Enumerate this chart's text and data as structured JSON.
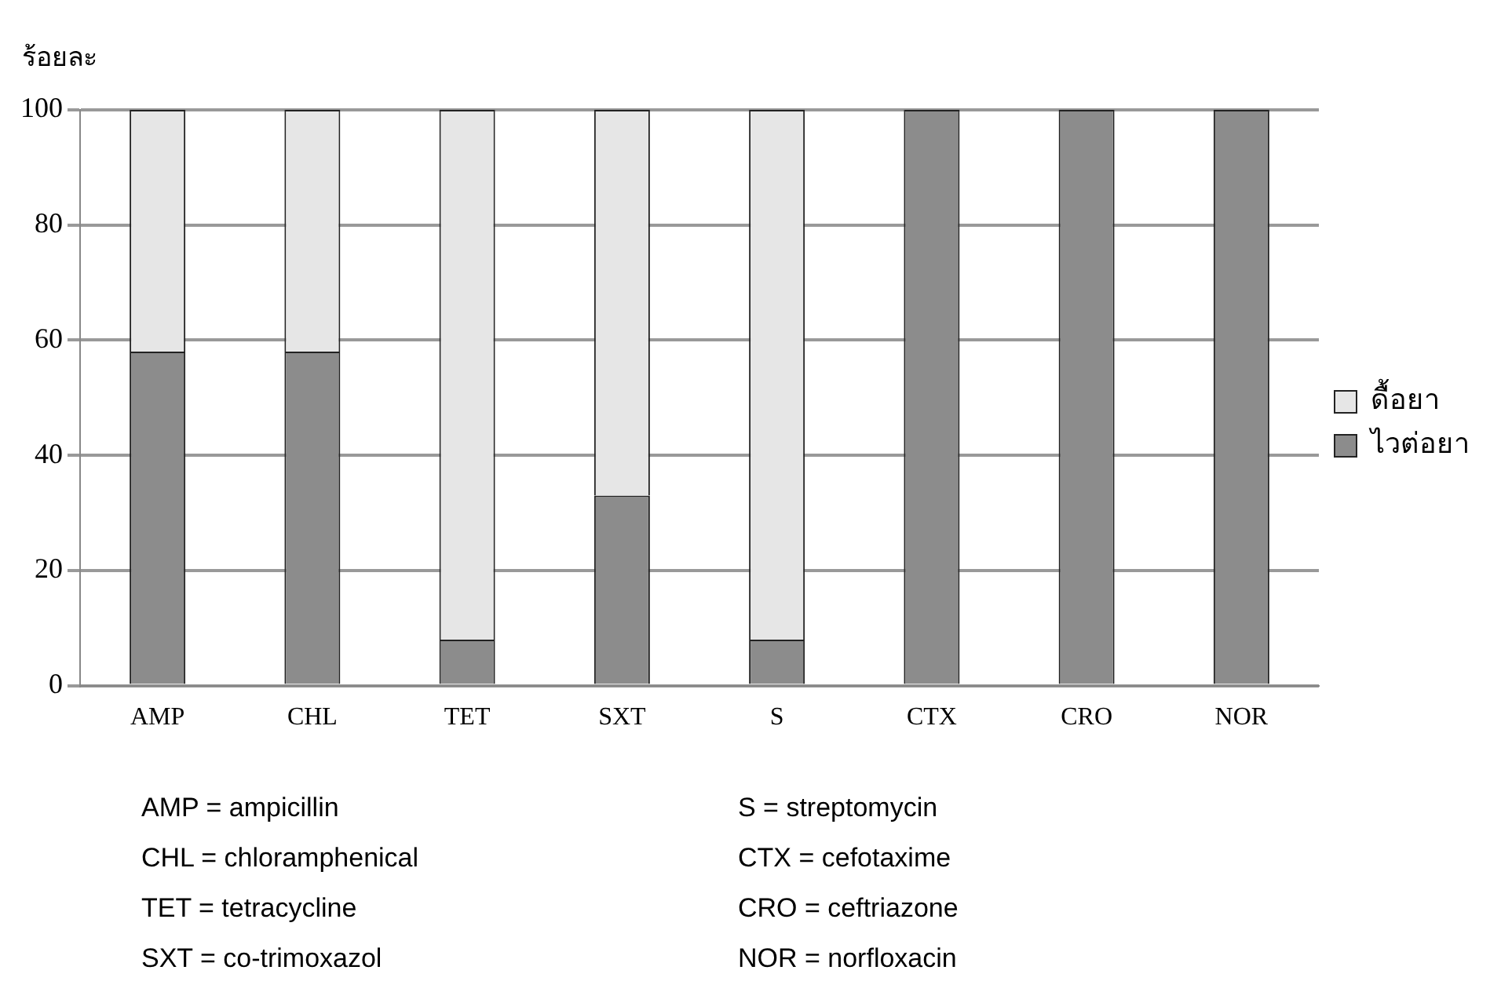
{
  "chart_data": {
    "type": "bar",
    "stacked": true,
    "ylabel": "ร้อยละ",
    "categories": [
      "AMP",
      "CHL",
      "TET",
      "SXT",
      "S",
      "CTX",
      "CRO",
      "NOR"
    ],
    "series": [
      {
        "name": "ไวต่อยา",
        "color": "#8c8c8c",
        "values": [
          58,
          58,
          8,
          33,
          8,
          100,
          100,
          100
        ]
      },
      {
        "name": "ดื้อยา",
        "color": "#e6e6e6",
        "values": [
          42,
          42,
          92,
          67,
          92,
          0,
          0,
          0
        ]
      }
    ],
    "ylim": [
      0,
      100
    ],
    "yticks": [
      0,
      20,
      40,
      60,
      80,
      100
    ],
    "grid": "y",
    "legend": "right",
    "annotations": [
      "AMP = ampicillin",
      "CHL = chloramphenical",
      "TET = tetracycline",
      "SXT = co-trimoxazol",
      "S = streptomycin",
      "CTX = cefotaxime",
      "CRO = ceftriazone",
      "NOR = norfloxacin"
    ]
  }
}
